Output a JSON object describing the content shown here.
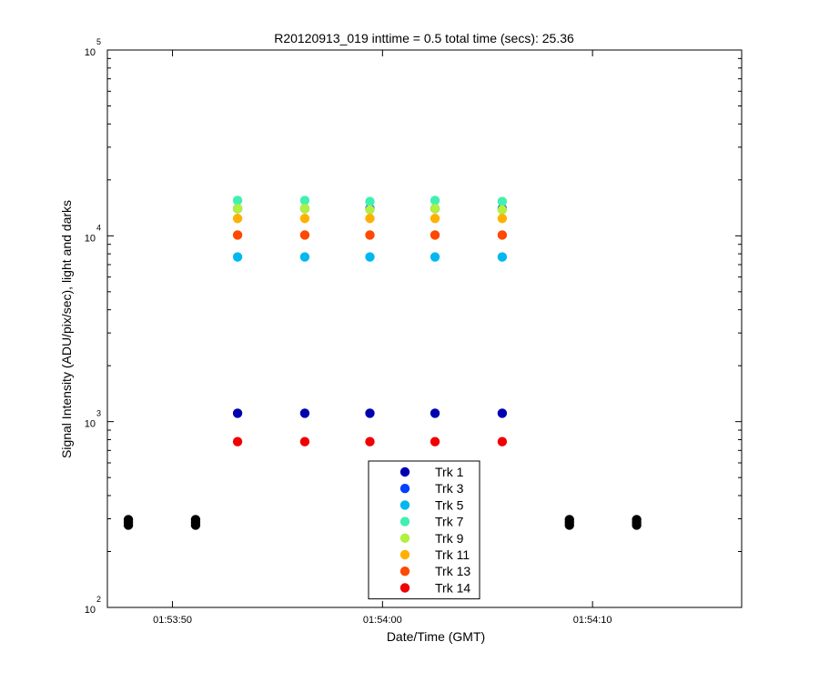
{
  "chart_data": {
    "type": "scatter",
    "title": "R20120913_019 inttime = 0.5 total time (secs): 25.36",
    "xlabel": "Date/Time (GMT)",
    "ylabel": "Signal Intensity (ADU/pix/sec), light and darks",
    "yscale": "log",
    "ylim": [
      100,
      100000
    ],
    "xlim": [
      "01:53:46.9",
      "01:54:17.1"
    ],
    "xticks": [
      {
        "value": "01:53:50",
        "label": "01:53:50"
      },
      {
        "value": "01:54:00",
        "label": "01:54:00"
      },
      {
        "value": "01:54:10",
        "label": "01:54:10"
      }
    ],
    "yticks": [
      {
        "value": 100,
        "base": "10",
        "exp": "2"
      },
      {
        "value": 1000,
        "base": "10",
        "exp": "3"
      },
      {
        "value": 10000,
        "base": "10",
        "exp": "4"
      },
      {
        "value": 100000,
        "base": "10",
        "exp": "5"
      }
    ],
    "grid": false,
    "legend_position": "bottom-center",
    "series": [
      {
        "name": "Trk 1",
        "color": "#0000b0",
        "x": [
          "01:53:53.1",
          "01:53:56.3",
          "01:53:59.4",
          "01:54:02.5",
          "01:54:05.7"
        ],
        "y": [
          1110,
          1110,
          1110,
          1110,
          1110
        ]
      },
      {
        "name": "Trk 3",
        "color": "#0040ff",
        "x": [
          "01:53:53.1",
          "01:53:56.3",
          "01:53:59.4",
          "01:54:02.5",
          "01:54:05.7"
        ],
        "y": [
          14000,
          14000,
          14000,
          14000,
          14000
        ]
      },
      {
        "name": "Trk 5",
        "color": "#00b8f0",
        "x": [
          "01:53:53.1",
          "01:53:56.3",
          "01:53:59.4",
          "01:54:02.5",
          "01:54:05.7"
        ],
        "y": [
          7700,
          7700,
          7700,
          7700,
          7700
        ]
      },
      {
        "name": "Trk 7",
        "color": "#40f0b0",
        "x": [
          "01:53:53.1",
          "01:53:56.3",
          "01:53:59.4",
          "01:54:02.5",
          "01:54:05.7"
        ],
        "y": [
          15500,
          15500,
          15300,
          15500,
          15300
        ]
      },
      {
        "name": "Trk 9",
        "color": "#b0f040",
        "x": [
          "01:53:53.1",
          "01:53:56.3",
          "01:53:59.4",
          "01:54:02.5",
          "01:54:05.7"
        ],
        "y": [
          14000,
          14000,
          13800,
          14000,
          13800
        ]
      },
      {
        "name": "Trk 11",
        "color": "#ffb000",
        "x": [
          "01:53:53.1",
          "01:53:56.3",
          "01:53:59.4",
          "01:54:02.5",
          "01:54:05.7"
        ],
        "y": [
          12400,
          12400,
          12400,
          12400,
          12400
        ]
      },
      {
        "name": "Trk 13",
        "color": "#ff4800",
        "x": [
          "01:53:53.1",
          "01:53:56.3",
          "01:53:59.4",
          "01:54:02.5",
          "01:54:05.7"
        ],
        "y": [
          10100,
          10100,
          10100,
          10100,
          10100
        ]
      },
      {
        "name": "Trk 14",
        "color": "#f00000",
        "x": [
          "01:53:53.1",
          "01:53:56.3",
          "01:53:59.4",
          "01:54:02.5",
          "01:54:05.7"
        ],
        "y": [
          780,
          780,
          780,
          780,
          780
        ]
      }
    ],
    "darks": {
      "color": "#000000",
      "x": [
        "01:53:47.9",
        "01:53:51.1",
        "01:54:08.9",
        "01:54:12.1"
      ],
      "y": [
        287,
        287,
        287,
        287
      ]
    }
  }
}
